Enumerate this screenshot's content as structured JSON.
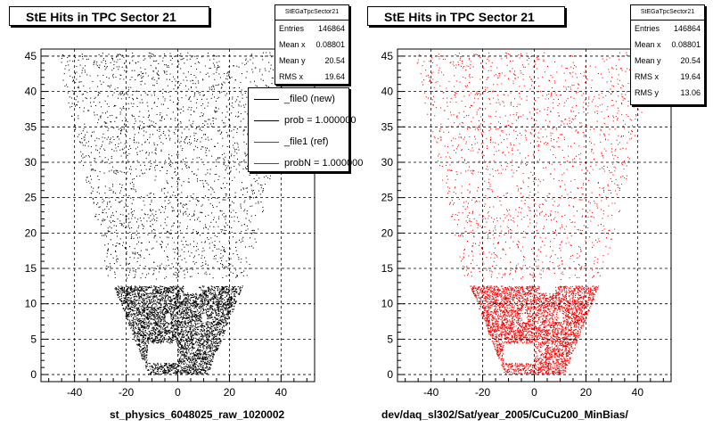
{
  "chart_data": [
    {
      "type": "scatter",
      "title": "StE Hits in TPC Sector 21",
      "xlabel": "st_physics_6048025_raw_1020002",
      "ylabel": "",
      "xlim": [
        -53,
        53
      ],
      "ylim": [
        -1,
        46
      ],
      "x_ticks": [
        -40,
        -20,
        0,
        20,
        40
      ],
      "y_ticks": [
        0,
        5,
        10,
        15,
        20,
        25,
        30,
        35,
        40,
        45
      ],
      "grid": true,
      "marker_color": "#000000",
      "stats": {
        "title": "StEGaTpcSector21",
        "rows": [
          {
            "label": "Entries",
            "value": "146864"
          },
          {
            "label": "Mean x",
            "value": "0.08801"
          },
          {
            "label": "Mean y",
            "value": "20.54"
          },
          {
            "label": "RMS x",
            "value": "19.64"
          }
        ]
      },
      "legend": {
        "placement": "top-right",
        "entries": [
          {
            "label": "_file0 (new)",
            "color": "#000000"
          },
          {
            "label": "prob = 1.000000",
            "color": "#000000"
          },
          {
            "label": "_file1 (ref)",
            "color": "#ff0000"
          },
          {
            "label": "probN = 1.000000",
            "color": "#ff0000"
          }
        ]
      }
    },
    {
      "type": "scatter",
      "title": "StE Hits in TPC Sector 21",
      "xlabel": "dev/daq_sl302/Sat/year_2005/CuCu200_MinBias/",
      "ylabel": "",
      "xlim": [
        -53,
        53
      ],
      "ylim": [
        -1,
        46
      ],
      "x_ticks": [
        -40,
        -20,
        0,
        20,
        40
      ],
      "y_ticks": [
        0,
        5,
        10,
        15,
        20,
        25,
        30,
        35,
        40,
        45
      ],
      "grid": true,
      "marker_color": "#ff0000",
      "stats": {
        "title": "StEGaTpcSector21",
        "rows": [
          {
            "label": "Entries",
            "value": "146864"
          },
          {
            "label": "Mean x",
            "value": "0.08801"
          },
          {
            "label": "Mean y",
            "value": "20.54"
          },
          {
            "label": "RMS x",
            "value": "19.64"
          },
          {
            "label": "RMS y",
            "value": "13.06"
          }
        ]
      }
    }
  ]
}
